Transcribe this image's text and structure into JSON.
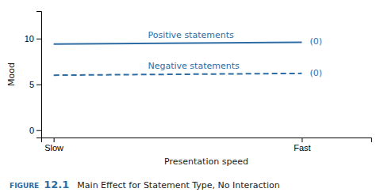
{
  "chart_data": {
    "type": "line",
    "x": [
      0,
      1
    ],
    "series": [
      {
        "name": "Positive statements",
        "values": [
          9.4,
          9.6
        ],
        "line_style": "solid"
      },
      {
        "name": "Negative statements",
        "values": [
          6.0,
          6.2
        ],
        "line_style": "dashed"
      }
    ],
    "color": "#2e6da4",
    "xlim": [
      -0.05,
      1.28
    ],
    "xticks": [
      {
        "value": 0,
        "label": "Slow"
      },
      {
        "value": 1,
        "label": "Fast"
      }
    ],
    "ylim": [
      -0.8,
      13.0
    ],
    "yticks": [
      0,
      5,
      10
    ],
    "xlabel": "Presentation speed",
    "ylabel": "Mood",
    "annotations": [
      {
        "text": "(0)",
        "series": 0
      },
      {
        "text": "(0)",
        "series": 1
      }
    ],
    "caption": {
      "word": "FIGURE",
      "number": "12.1",
      "text": "Main Effect for Statement Type, No Interaction"
    },
    "grid": false
  }
}
